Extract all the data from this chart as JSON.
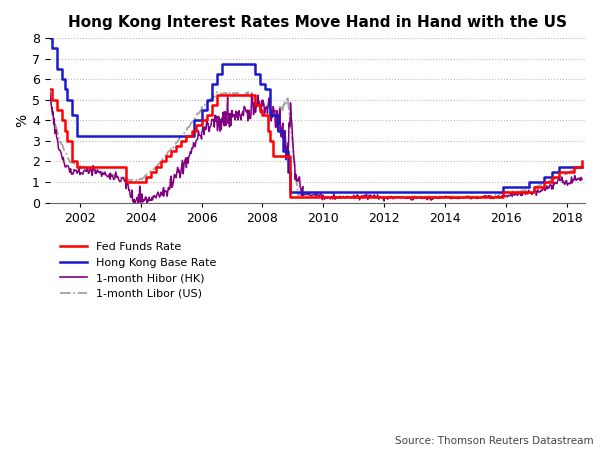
{
  "title": "Hong Kong Interest Rates Move Hand in Hand with the US",
  "ylabel": "%",
  "source": "Source: Thomson Reuters Datastream",
  "ylim": [
    0,
    8
  ],
  "yticks": [
    0,
    1,
    2,
    3,
    4,
    5,
    6,
    7,
    8
  ],
  "xlim": [
    2001.0,
    2018.6
  ],
  "xticks": [
    2002,
    2004,
    2006,
    2008,
    2010,
    2012,
    2014,
    2016,
    2018
  ],
  "colors": {
    "fed_funds": "#FF0000",
    "hk_base": "#1a1aCC",
    "hibor": "#800080",
    "libor": "#999999"
  },
  "background_color": "#FFFFFF",
  "grid_color": "#BBBBBB",
  "title_fontsize": 11,
  "figsize": [
    6.0,
    4.5
  ],
  "dpi": 100,
  "fed_dates": [
    2001.0,
    2001.08,
    2001.25,
    2001.42,
    2001.5,
    2001.58,
    2001.75,
    2001.92,
    2002.0,
    2003.5,
    2003.67,
    2004.17,
    2004.33,
    2004.5,
    2004.67,
    2004.83,
    2005.0,
    2005.17,
    2005.33,
    2005.5,
    2005.67,
    2005.83,
    2006.0,
    2006.17,
    2006.33,
    2006.5,
    2007.58,
    2007.75,
    2007.92,
    2008.0,
    2008.17,
    2008.25,
    2008.33,
    2008.92,
    2009.0,
    2015.92,
    2016.92,
    2017.25,
    2017.5,
    2017.75,
    2018.0,
    2018.25,
    2018.5
  ],
  "fed_values": [
    5.5,
    5.0,
    4.5,
    4.0,
    3.5,
    3.0,
    2.0,
    1.75,
    1.75,
    1.0,
    1.0,
    1.25,
    1.5,
    1.75,
    2.0,
    2.25,
    2.5,
    2.75,
    3.0,
    3.25,
    3.5,
    3.75,
    4.0,
    4.25,
    4.75,
    5.25,
    5.25,
    4.75,
    4.5,
    4.25,
    3.5,
    3.0,
    2.25,
    0.25,
    0.25,
    0.5,
    0.75,
    1.0,
    1.25,
    1.5,
    1.5,
    1.75,
    2.0
  ],
  "hk_dates": [
    2001.0,
    2001.08,
    2001.25,
    2001.42,
    2001.5,
    2001.58,
    2001.75,
    2001.92,
    2003.5,
    2005.5,
    2005.75,
    2006.0,
    2006.17,
    2006.33,
    2006.5,
    2006.67,
    2007.0,
    2007.58,
    2007.75,
    2007.92,
    2008.08,
    2008.25,
    2008.5,
    2008.67,
    2008.83,
    2008.92,
    2009.0,
    2015.92,
    2016.75,
    2017.25,
    2017.5,
    2017.75,
    2018.0,
    2018.5
  ],
  "hk_values": [
    8.0,
    7.5,
    6.5,
    6.0,
    5.5,
    5.0,
    4.25,
    3.25,
    3.25,
    3.25,
    4.0,
    4.5,
    5.0,
    5.75,
    6.25,
    6.75,
    6.75,
    6.75,
    6.25,
    5.75,
    5.5,
    4.25,
    3.5,
    2.5,
    1.5,
    0.5,
    0.5,
    0.75,
    1.0,
    1.25,
    1.5,
    1.75,
    1.75,
    1.75
  ]
}
